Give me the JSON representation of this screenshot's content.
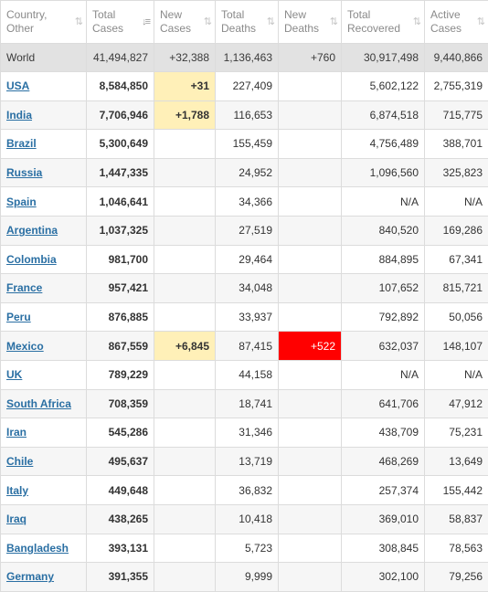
{
  "columns": [
    {
      "line1": "Country,",
      "line2": "Other",
      "sort": "sort-icon"
    },
    {
      "line1": "Total",
      "line2": "Cases",
      "sort": "sort-desc-icon"
    },
    {
      "line1": "New",
      "line2": "Cases",
      "sort": "sort-icon"
    },
    {
      "line1": "Total",
      "line2": "Deaths",
      "sort": "sort-icon"
    },
    {
      "line1": "New",
      "line2": "Deaths",
      "sort": "sort-icon"
    },
    {
      "line1": "Total",
      "line2": "Recovered",
      "sort": "sort-icon"
    },
    {
      "line1": "Active",
      "line2": "Cases",
      "sort": "sort-icon"
    }
  ],
  "world": {
    "country": "World",
    "total_cases": "41,494,827",
    "new_cases": "+32,388",
    "total_deaths": "1,136,463",
    "new_deaths": "+760",
    "total_recovered": "30,917,498",
    "active_cases": "9,440,866"
  },
  "rows": [
    {
      "country": "USA",
      "total_cases": "8,584,850",
      "new_cases": "+31",
      "total_deaths": "227,409",
      "new_deaths": "",
      "total_recovered": "5,602,122",
      "active_cases": "2,755,319"
    },
    {
      "country": "India",
      "total_cases": "7,706,946",
      "new_cases": "+1,788",
      "total_deaths": "116,653",
      "new_deaths": "",
      "total_recovered": "6,874,518",
      "active_cases": "715,775"
    },
    {
      "country": "Brazil",
      "total_cases": "5,300,649",
      "new_cases": "",
      "total_deaths": "155,459",
      "new_deaths": "",
      "total_recovered": "4,756,489",
      "active_cases": "388,701"
    },
    {
      "country": "Russia",
      "total_cases": "1,447,335",
      "new_cases": "",
      "total_deaths": "24,952",
      "new_deaths": "",
      "total_recovered": "1,096,560",
      "active_cases": "325,823"
    },
    {
      "country": "Spain",
      "total_cases": "1,046,641",
      "new_cases": "",
      "total_deaths": "34,366",
      "new_deaths": "",
      "total_recovered": "N/A",
      "active_cases": "N/A"
    },
    {
      "country": "Argentina",
      "total_cases": "1,037,325",
      "new_cases": "",
      "total_deaths": "27,519",
      "new_deaths": "",
      "total_recovered": "840,520",
      "active_cases": "169,286"
    },
    {
      "country": "Colombia",
      "total_cases": "981,700",
      "new_cases": "",
      "total_deaths": "29,464",
      "new_deaths": "",
      "total_recovered": "884,895",
      "active_cases": "67,341"
    },
    {
      "country": "France",
      "total_cases": "957,421",
      "new_cases": "",
      "total_deaths": "34,048",
      "new_deaths": "",
      "total_recovered": "107,652",
      "active_cases": "815,721"
    },
    {
      "country": "Peru",
      "total_cases": "876,885",
      "new_cases": "",
      "total_deaths": "33,937",
      "new_deaths": "",
      "total_recovered": "792,892",
      "active_cases": "50,056"
    },
    {
      "country": "Mexico",
      "total_cases": "867,559",
      "new_cases": "+6,845",
      "total_deaths": "87,415",
      "new_deaths": "+522",
      "total_recovered": "632,037",
      "active_cases": "148,107"
    },
    {
      "country": "UK",
      "total_cases": "789,229",
      "new_cases": "",
      "total_deaths": "44,158",
      "new_deaths": "",
      "total_recovered": "N/A",
      "active_cases": "N/A"
    },
    {
      "country": "South Africa",
      "total_cases": "708,359",
      "new_cases": "",
      "total_deaths": "18,741",
      "new_deaths": "",
      "total_recovered": "641,706",
      "active_cases": "47,912"
    },
    {
      "country": "Iran",
      "total_cases": "545,286",
      "new_cases": "",
      "total_deaths": "31,346",
      "new_deaths": "",
      "total_recovered": "438,709",
      "active_cases": "75,231"
    },
    {
      "country": "Chile",
      "total_cases": "495,637",
      "new_cases": "",
      "total_deaths": "13,719",
      "new_deaths": "",
      "total_recovered": "468,269",
      "active_cases": "13,649"
    },
    {
      "country": "Italy",
      "total_cases": "449,648",
      "new_cases": "",
      "total_deaths": "36,832",
      "new_deaths": "",
      "total_recovered": "257,374",
      "active_cases": "155,442"
    },
    {
      "country": "Iraq",
      "total_cases": "438,265",
      "new_cases": "",
      "total_deaths": "10,418",
      "new_deaths": "",
      "total_recovered": "369,010",
      "active_cases": "58,837"
    },
    {
      "country": "Bangladesh",
      "total_cases": "393,131",
      "new_cases": "",
      "total_deaths": "5,723",
      "new_deaths": "",
      "total_recovered": "308,845",
      "active_cases": "78,563"
    },
    {
      "country": "Germany",
      "total_cases": "391,355",
      "new_cases": "",
      "total_deaths": "9,999",
      "new_deaths": "",
      "total_recovered": "302,100",
      "active_cases": "79,256"
    }
  ],
  "colors": {
    "new_cases_highlight": "#fff0b8",
    "new_deaths_highlight": "#ff0000",
    "link": "#2a6fa3",
    "world_row": "#e2e2e2"
  }
}
